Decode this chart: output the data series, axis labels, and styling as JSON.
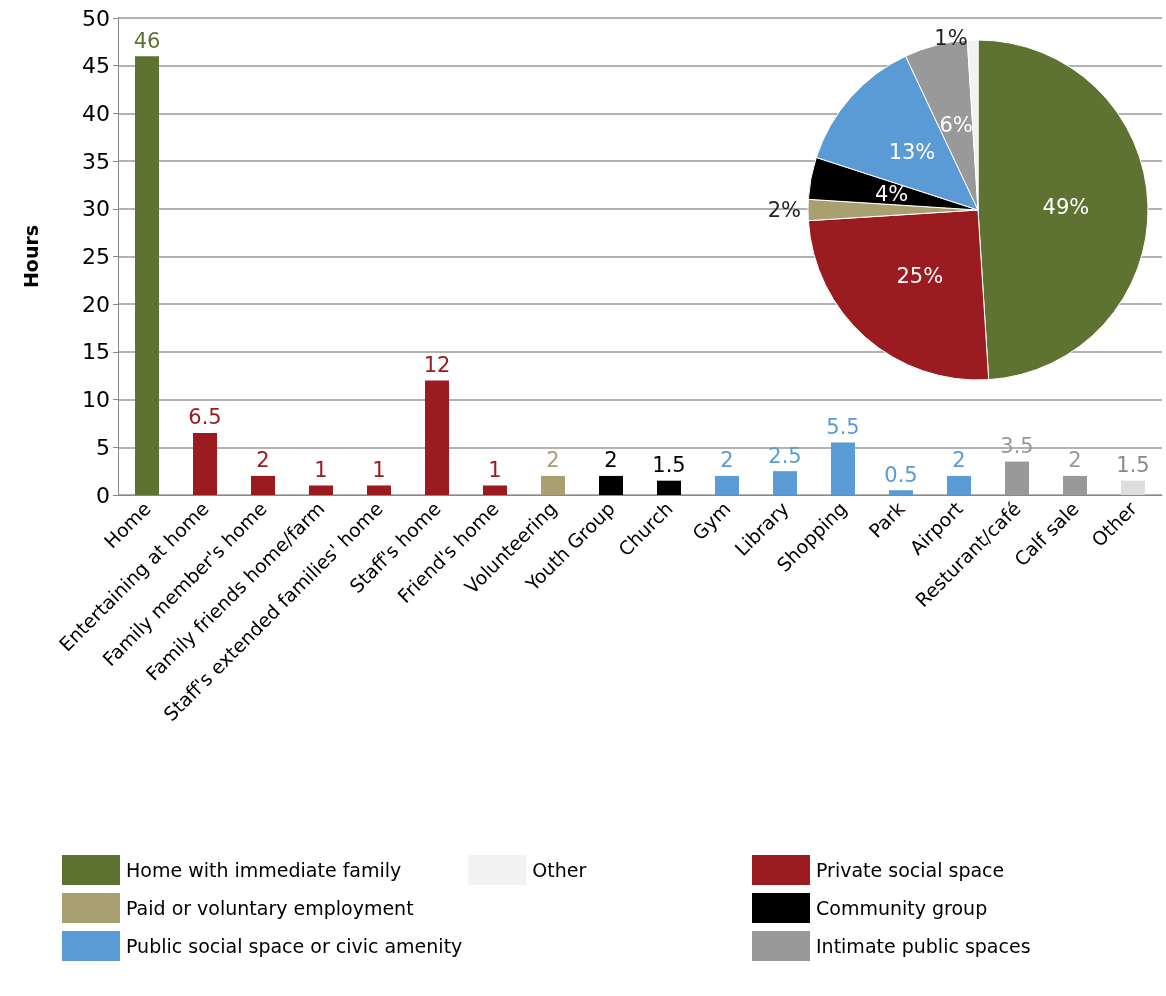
{
  "chart_data": [
    {
      "type": "bar",
      "ylabel": "Hours",
      "categories": [
        "Home",
        "Entertaining at home",
        "Family member's home",
        "Family friends home/farm",
        "Staff's extended families' home",
        "Staff's home",
        "Friend's home",
        "Volunteering",
        "Youth Group",
        "Church",
        "Gym",
        "Library",
        "Shopping",
        "Park",
        "Airport",
        "Resturant/café",
        "Calf sale",
        "Other"
      ],
      "values": [
        46,
        6.5,
        2,
        1,
        1,
        12,
        1,
        2,
        2,
        1.5,
        2,
        2.5,
        5.5,
        0.5,
        2,
        3.5,
        2,
        1.5
      ],
      "colors": [
        "#5e7232",
        "#9b1c20",
        "#9b1c20",
        "#9b1c20",
        "#9b1c20",
        "#9b1c20",
        "#9b1c20",
        "#a8a070",
        "#000000",
        "#000000",
        "#5b9bd5",
        "#5b9bd5",
        "#5b9bd5",
        "#5b9bd5",
        "#5b9bd5",
        "#999999",
        "#999999",
        "#dddddd"
      ],
      "ylim": [
        0,
        50
      ],
      "yticks": [
        0,
        5,
        10,
        15,
        20,
        25,
        30,
        35,
        40,
        45,
        50
      ],
      "grid": "y",
      "data_labels": true
    },
    {
      "type": "pie",
      "categories": [
        "Home with immediate family",
        "Private social space",
        "Paid or voluntary employment",
        "Community group",
        "Public social space or civic amenity",
        "Intimate public spaces",
        "Other"
      ],
      "values": [
        49,
        25,
        2,
        4,
        13,
        6,
        1
      ],
      "value_labels": [
        "49%",
        "25%",
        "2%",
        "4%",
        "13%",
        "6%",
        "1%"
      ],
      "colors": [
        "#5e7232",
        "#9b1c20",
        "#a8a070",
        "#000000",
        "#5b9bd5",
        "#999999",
        "#f2f2f2"
      ],
      "legend": "bottom"
    }
  ]
}
